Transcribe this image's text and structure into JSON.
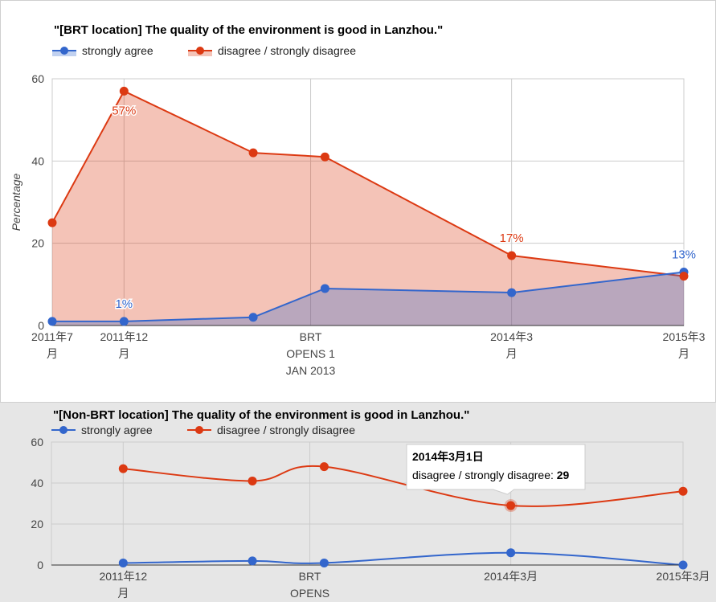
{
  "chart_data": [
    {
      "type": "area",
      "title": "\"[BRT location] The quality of the environment is good in Lanzhou.\"",
      "ylabel": "Percentage",
      "ylim": [
        0,
        60
      ],
      "yticks": [
        0,
        20,
        40,
        60
      ],
      "grid": true,
      "legend": "top",
      "x_labels": [
        {
          "at": "2011-07",
          "lines": [
            "2011年7",
            "月"
          ]
        },
        {
          "at": "2011-12",
          "lines": [
            "2011年12",
            "月"
          ]
        },
        {
          "at": "2013-01",
          "lines": [
            "BRT",
            "OPENS 1",
            "JAN 2013"
          ]
        },
        {
          "at": "2014-03",
          "lines": [
            "2014年3",
            "月"
          ]
        },
        {
          "at": "2015-03",
          "lines": [
            "2015年3",
            "月"
          ]
        }
      ],
      "x": [
        "2011-07",
        "2011-12",
        "2012-09",
        "2013-02",
        "2014-03",
        "2015-03"
      ],
      "series": [
        {
          "name": "strongly agree",
          "color": "#3366cc",
          "values": [
            1,
            1,
            2,
            9,
            8,
            13
          ]
        },
        {
          "name": "disagree / strongly disagree",
          "color": "#dc3912",
          "values": [
            25,
            57,
            42,
            41,
            17,
            12
          ]
        }
      ],
      "annotations": [
        {
          "series": 1,
          "index": 1,
          "text": "57%"
        },
        {
          "series": 0,
          "index": 1,
          "text": "1%"
        },
        {
          "series": 1,
          "index": 4,
          "text": "17%"
        },
        {
          "series": 0,
          "index": 5,
          "text": "13%"
        }
      ]
    },
    {
      "type": "line",
      "title": "\"[Non-BRT location] The quality of the environment is good in Lanzhou.\"",
      "ylim": [
        0,
        60
      ],
      "yticks": [
        0,
        20,
        40,
        60
      ],
      "grid": true,
      "legend": "top",
      "x_labels": [
        {
          "at": "2011-12",
          "lines": [
            "2011年12",
            "月"
          ]
        },
        {
          "at": "2013-01",
          "lines": [
            "BRT",
            "OPENS"
          ]
        },
        {
          "at": "2014-03",
          "lines": [
            "2014年3月"
          ]
        },
        {
          "at": "2015-03",
          "lines": [
            "2015年3月"
          ]
        }
      ],
      "x": [
        "2011-12",
        "2012-09",
        "2013-02",
        "2014-03",
        "2015-03"
      ],
      "series": [
        {
          "name": "strongly agree",
          "color": "#3366cc",
          "values": [
            1,
            2,
            1,
            6,
            0
          ]
        },
        {
          "name": "disagree / strongly disagree",
          "color": "#dc3912",
          "values": [
            47,
            41,
            48,
            29,
            36
          ]
        }
      ],
      "tooltip": {
        "title": "2014年3月1日",
        "label": "disagree / strongly disagree:",
        "value": "29",
        "series": 1,
        "index": 3
      }
    }
  ]
}
